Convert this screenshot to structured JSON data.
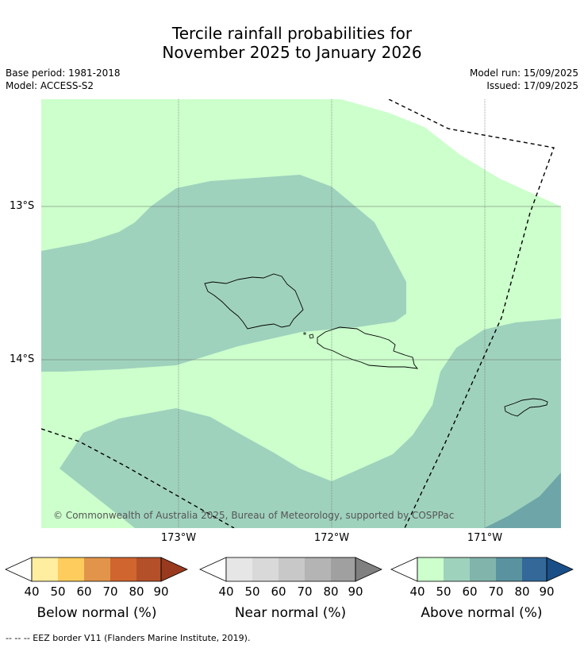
{
  "title_line1": "Tercile rainfall probabilities for",
  "title_line2": "November 2025 to January 2026",
  "meta": {
    "base_period": "Base period: 1981-2018",
    "model": "Model: ACCESS-S2",
    "model_run": "Model run: 15/09/2025",
    "issued": "Issued: 17/09/2025"
  },
  "map": {
    "lat_labels": [
      "13°S",
      "14°S"
    ],
    "lon_labels": [
      "173°W",
      "172°W",
      "171°W"
    ],
    "credit": "© Commonwealth of Australia 2025, Bureau of Meteorology, supported by COSPPac",
    "colors": {
      "above_40": "#ccffcc",
      "above_50": "#9fd2bd",
      "above_70": "#6ea5a8",
      "land_outline": "#000000",
      "grid": "#555555"
    }
  },
  "colorbars": [
    {
      "label": "Below normal (%)",
      "ticks": [
        "40",
        "50",
        "60",
        "70",
        "80",
        "90"
      ],
      "colors": [
        "#ffffff",
        "#ffeda0",
        "#fecc5c",
        "#e2954a",
        "#d0652f",
        "#b3502a",
        "#993a1e"
      ]
    },
    {
      "label": "Near normal (%)",
      "ticks": [
        "40",
        "50",
        "60",
        "70",
        "80",
        "90"
      ],
      "colors": [
        "#ffffff",
        "#e6e6e6",
        "#d9d9d9",
        "#c8c8c8",
        "#b4b4b4",
        "#a0a0a0",
        "#808080"
      ]
    },
    {
      "label": "Above normal (%)",
      "ticks": [
        "40",
        "50",
        "60",
        "70",
        "80",
        "90"
      ],
      "colors": [
        "#ffffff",
        "#ccffcc",
        "#9fd2bd",
        "#81b5ab",
        "#5b92a0",
        "#336899",
        "#1a4e87"
      ]
    }
  ],
  "footnote": "--  --  -- EEZ border V11 (Flanders Marine Institute, 2019)."
}
